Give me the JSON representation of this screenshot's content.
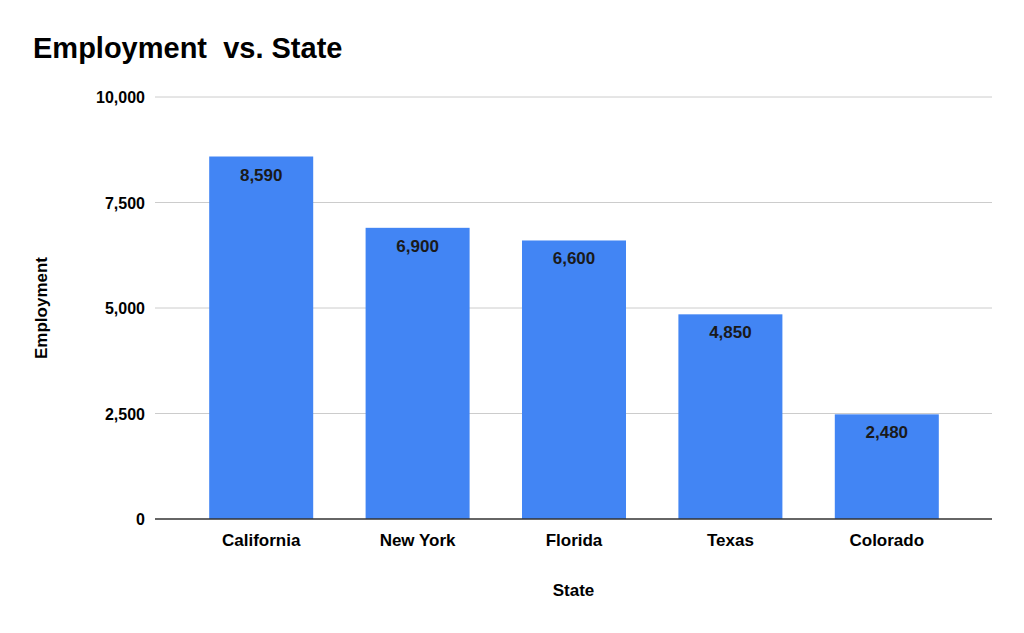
{
  "chart_data": {
    "type": "bar",
    "title": "Employment  vs. State",
    "x_label": "State",
    "y_label": "Employment",
    "categories": [
      "California",
      "New York",
      "Florida",
      "Texas",
      "Colorado"
    ],
    "values": [
      8590,
      6900,
      6600,
      4850,
      2480
    ],
    "value_labels": [
      "8,590",
      "6,900",
      "6,600",
      "4,850",
      "2,480"
    ],
    "color": "#4285f4",
    "ylim": [
      0,
      10000
    ],
    "yticks": [
      0,
      {
        "value": 2500,
        "label": "2,500"
      },
      {
        "value": 5000,
        "label": "5,000"
      },
      {
        "value": 7500,
        "label": "7,500"
      },
      {
        "value": 10000,
        "label": "10,000"
      }
    ],
    "grid": true,
    "data_labels": true
  }
}
